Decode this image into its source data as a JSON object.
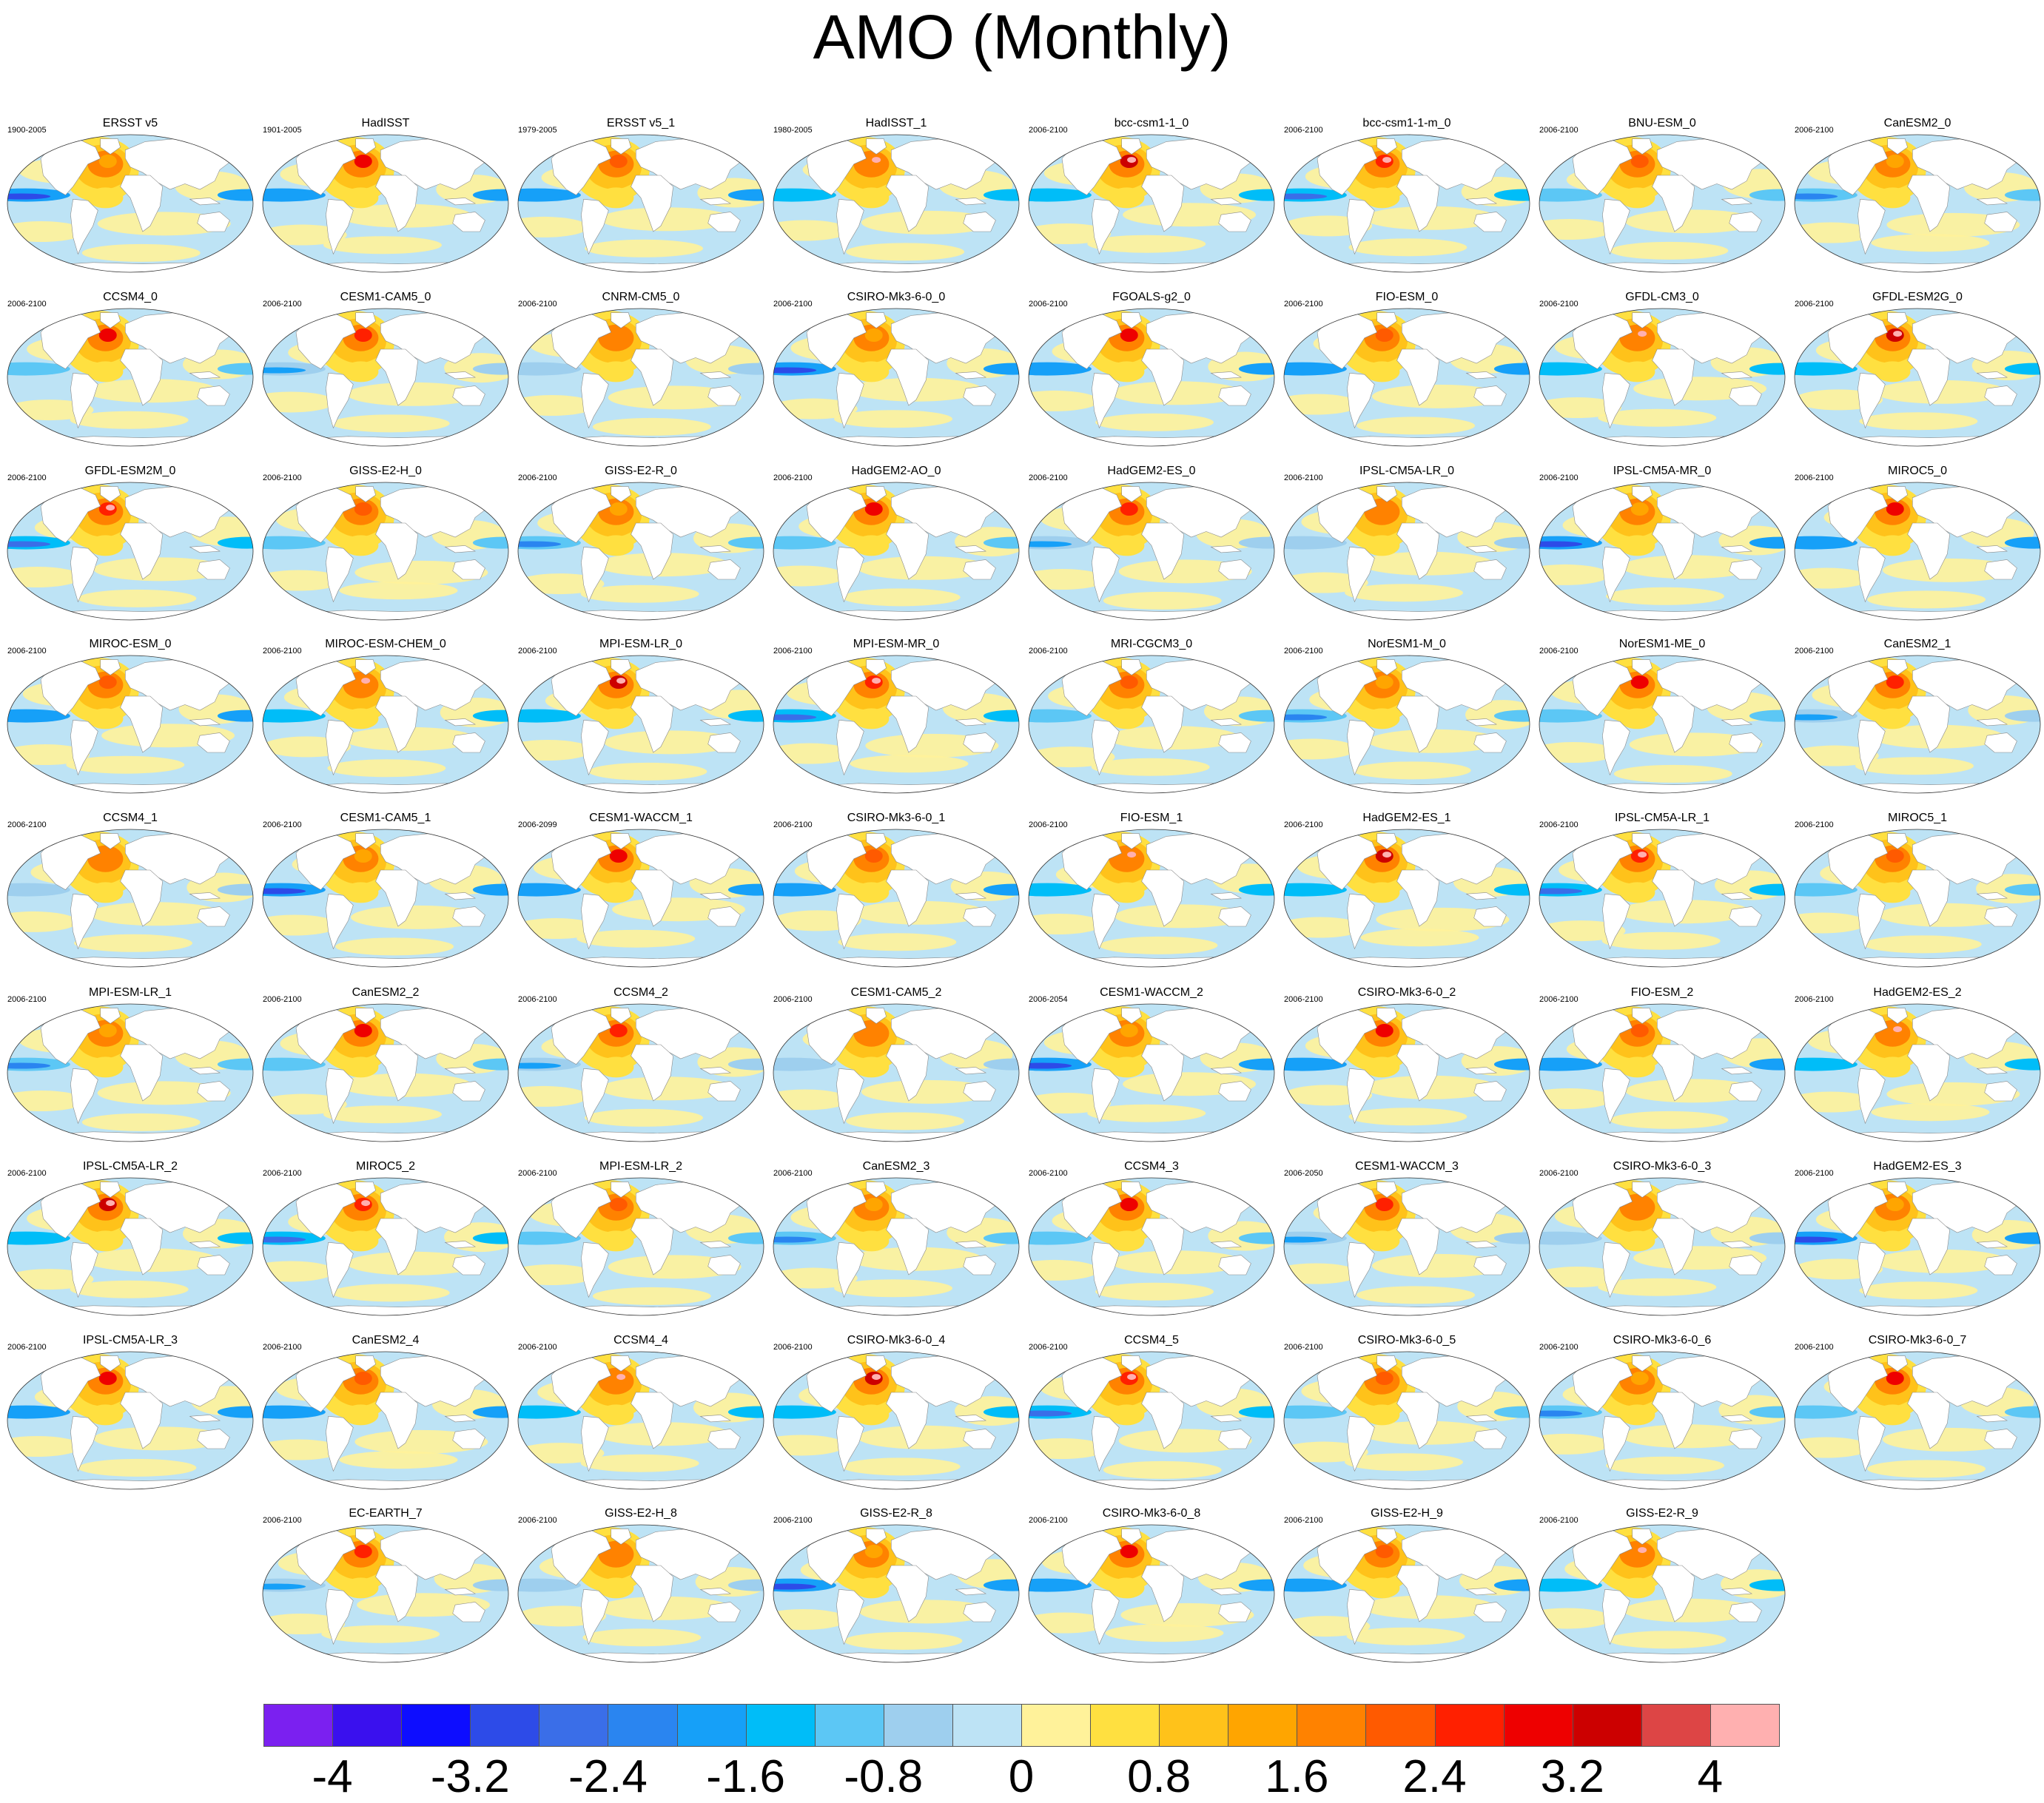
{
  "title": "AMO (Monthly)",
  "chart_data": {
    "type": "heatmap",
    "title": "AMO (Monthly)",
    "projection": "global ellipse (Robinson-like) maps, Atlantic-centered",
    "colorbar": {
      "position": "bottom",
      "labels": [
        "-4",
        "-3.2",
        "-2.4",
        "-1.6",
        "-0.8",
        "0",
        "0.8",
        "1.6",
        "2.4",
        "3.2",
        "4"
      ],
      "levels": [
        -4,
        -3.6,
        -3.2,
        -2.8,
        -2.4,
        -2,
        -1.6,
        -1.2,
        -0.8,
        -0.4,
        0,
        0.4,
        0.8,
        1.2,
        1.6,
        2,
        2.4,
        2.8,
        3.2,
        3.6,
        4
      ],
      "colors": [
        "#7b20f0",
        "#3a10ee",
        "#0d0dff",
        "#2d4be8",
        "#3a6ee8",
        "#2a85f0",
        "#16a0f8",
        "#00bdf8",
        "#5cc7f5",
        "#9ecfee",
        "#bde3f5",
        "#fff29a",
        "#ffe040",
        "#ffc21a",
        "#ffa500",
        "#ff8200",
        "#ff5a00",
        "#ff2000",
        "#ee0000",
        "#cc0000",
        "#dd4545",
        "#ffb0b0"
      ]
    },
    "panels": [
      {
        "name": "ERSST v5",
        "period": "1900-2005"
      },
      {
        "name": "HadISST",
        "period": "1901-2005"
      },
      {
        "name": "ERSST v5_1",
        "period": "1979-2005"
      },
      {
        "name": "HadISST_1",
        "period": "1980-2005"
      },
      {
        "name": "bcc-csm1-1_0",
        "period": "2006-2100"
      },
      {
        "name": "bcc-csm1-1-m_0",
        "period": "2006-2100"
      },
      {
        "name": "BNU-ESM_0",
        "period": "2006-2100"
      },
      {
        "name": "CanESM2_0",
        "period": "2006-2100"
      },
      {
        "name": "CCSM4_0",
        "period": "2006-2100"
      },
      {
        "name": "CESM1-CAM5_0",
        "period": "2006-2100"
      },
      {
        "name": "CNRM-CM5_0",
        "period": "2006-2100"
      },
      {
        "name": "CSIRO-Mk3-6-0_0",
        "period": "2006-2100"
      },
      {
        "name": "FGOALS-g2_0",
        "period": "2006-2100"
      },
      {
        "name": "FIO-ESM_0",
        "period": "2006-2100"
      },
      {
        "name": "GFDL-CM3_0",
        "period": "2006-2100"
      },
      {
        "name": "GFDL-ESM2G_0",
        "period": "2006-2100"
      },
      {
        "name": "GFDL-ESM2M_0",
        "period": "2006-2100"
      },
      {
        "name": "GISS-E2-H_0",
        "period": "2006-2100"
      },
      {
        "name": "GISS-E2-R_0",
        "period": "2006-2100"
      },
      {
        "name": "HadGEM2-AO_0",
        "period": "2006-2100"
      },
      {
        "name": "HadGEM2-ES_0",
        "period": "2006-2100"
      },
      {
        "name": "IPSL-CM5A-LR_0",
        "period": "2006-2100"
      },
      {
        "name": "IPSL-CM5A-MR_0",
        "period": "2006-2100"
      },
      {
        "name": "MIROC5_0",
        "period": "2006-2100"
      },
      {
        "name": "MIROC-ESM_0",
        "period": "2006-2100"
      },
      {
        "name": "MIROC-ESM-CHEM_0",
        "period": "2006-2100"
      },
      {
        "name": "MPI-ESM-LR_0",
        "period": "2006-2100"
      },
      {
        "name": "MPI-ESM-MR_0",
        "period": "2006-2100"
      },
      {
        "name": "MRI-CGCM3_0",
        "period": "2006-2100"
      },
      {
        "name": "NorESM1-M_0",
        "period": "2006-2100"
      },
      {
        "name": "NorESM1-ME_0",
        "period": "2006-2100"
      },
      {
        "name": "CanESM2_1",
        "period": "2006-2100"
      },
      {
        "name": "CCSM4_1",
        "period": "2006-2100"
      },
      {
        "name": "CESM1-CAM5_1",
        "period": "2006-2100"
      },
      {
        "name": "CESM1-WACCM_1",
        "period": "2006-2099"
      },
      {
        "name": "CSIRO-Mk3-6-0_1",
        "period": "2006-2100"
      },
      {
        "name": "FIO-ESM_1",
        "period": "2006-2100"
      },
      {
        "name": "HadGEM2-ES_1",
        "period": "2006-2100"
      },
      {
        "name": "IPSL-CM5A-LR_1",
        "period": "2006-2100"
      },
      {
        "name": "MIROC5_1",
        "period": "2006-2100"
      },
      {
        "name": "MPI-ESM-LR_1",
        "period": "2006-2100"
      },
      {
        "name": "CanESM2_2",
        "period": "2006-2100"
      },
      {
        "name": "CCSM4_2",
        "period": "2006-2100"
      },
      {
        "name": "CESM1-CAM5_2",
        "period": "2006-2100"
      },
      {
        "name": "CESM1-WACCM_2",
        "period": "2006-2054"
      },
      {
        "name": "CSIRO-Mk3-6-0_2",
        "period": "2006-2100"
      },
      {
        "name": "FIO-ESM_2",
        "period": "2006-2100"
      },
      {
        "name": "HadGEM2-ES_2",
        "period": "2006-2100"
      },
      {
        "name": "IPSL-CM5A-LR_2",
        "period": "2006-2100"
      },
      {
        "name": "MIROC5_2",
        "period": "2006-2100"
      },
      {
        "name": "MPI-ESM-LR_2",
        "period": "2006-2100"
      },
      {
        "name": "CanESM2_3",
        "period": "2006-2100"
      },
      {
        "name": "CCSM4_3",
        "period": "2006-2100"
      },
      {
        "name": "CESM1-WACCM_3",
        "period": "2006-2050"
      },
      {
        "name": "CSIRO-Mk3-6-0_3",
        "period": "2006-2100"
      },
      {
        "name": "HadGEM2-ES_3",
        "period": "2006-2100"
      },
      {
        "name": "IPSL-CM5A-LR_3",
        "period": "2006-2100"
      },
      {
        "name": "CanESM2_4",
        "period": "2006-2100"
      },
      {
        "name": "CCSM4_4",
        "period": "2006-2100"
      },
      {
        "name": "CSIRO-Mk3-6-0_4",
        "period": "2006-2100"
      },
      {
        "name": "CCSM4_5",
        "period": "2006-2100"
      },
      {
        "name": "CSIRO-Mk3-6-0_5",
        "period": "2006-2100"
      },
      {
        "name": "CSIRO-Mk3-6-0_6",
        "period": "2006-2100"
      },
      {
        "name": "CSIRO-Mk3-6-0_7",
        "period": "2006-2100"
      },
      {
        "name": "EC-EARTH_7",
        "period": "2006-2100"
      },
      {
        "name": "GISS-E2-H_8",
        "period": "2006-2100"
      },
      {
        "name": "GISS-E2-R_8",
        "period": "2006-2100"
      },
      {
        "name": "CSIRO-Mk3-6-0_8",
        "period": "2006-2100"
      },
      {
        "name": "GISS-E2-H_9",
        "period": "2006-2100"
      },
      {
        "name": "GISS-E2-R_9",
        "period": "2006-2100"
      }
    ]
  }
}
